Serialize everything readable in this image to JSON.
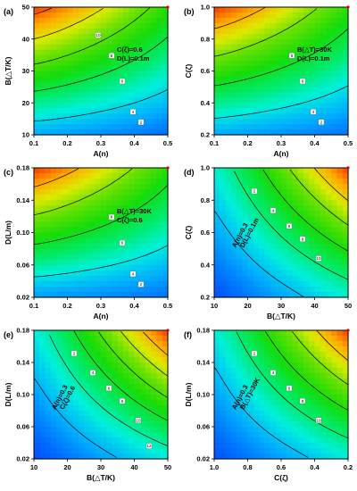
{
  "chart_data": [
    {
      "type": "heatmap",
      "panel_label": "(a)",
      "xlabel": "A(n)",
      "ylabel": "B(△T/K)",
      "xlim": [
        0.1,
        0.5
      ],
      "ylim": [
        10,
        50
      ],
      "xticks": [
        "0.1",
        "0.2",
        "0.3",
        "0.4",
        "0.5"
      ],
      "yticks": [
        "10",
        "20",
        "30",
        "40",
        "50"
      ],
      "annotations": [
        "C(ζ)=0.6",
        "D(L)=0.1m"
      ],
      "contour_labels": [
        "10",
        "8",
        "6",
        "4",
        "2"
      ],
      "field": {
        "hot_corner": "top-left",
        "z_corners": {
          "bl": 1.3,
          "br": 0.6,
          "tl": 10.6,
          "tr": 5.2
        }
      }
    },
    {
      "type": "heatmap",
      "panel_label": "(b)",
      "xlabel": "A(n)",
      "ylabel": "C(ζ)",
      "xlim": [
        0.1,
        0.5
      ],
      "ylim": [
        0.2,
        1.0
      ],
      "xticks": [
        "0.1",
        "0.2",
        "0.3",
        "0.4",
        "0.5"
      ],
      "yticks": [
        "0.2",
        "0.4",
        "0.6",
        "0.8",
        "1.0"
      ],
      "annotations": [
        "B(△T)=30K",
        "D(L)=0.1m"
      ],
      "contour_labels": [
        "8",
        "6",
        "4",
        "2"
      ],
      "field": {
        "hot_corner": "top-left",
        "z_corners": {
          "bl": 1.2,
          "br": 0.6,
          "tl": 9.6,
          "tr": 4.8
        }
      }
    },
    {
      "type": "heatmap",
      "panel_label": "(c)",
      "xlabel": "A(n)",
      "ylabel": "D(L/m)",
      "xlim": [
        0.1,
        0.5
      ],
      "ylim": [
        0.02,
        0.18
      ],
      "xticks": [
        "0.1",
        "0.2",
        "0.3",
        "0.4",
        "0.5"
      ],
      "yticks": [
        "0.02",
        "0.06",
        "0.10",
        "0.14",
        "0.18"
      ],
      "annotations": [
        "B(△T)=30K",
        "C(ζ)=0.6"
      ],
      "contour_labels": [
        "8",
        "6",
        "4",
        "2"
      ],
      "field": {
        "hot_corner": "top-left",
        "z_corners": {
          "bl": 1.0,
          "br": 0.6,
          "tl": 9.4,
          "tr": 4.6
        }
      }
    },
    {
      "type": "heatmap",
      "panel_label": "(d)",
      "xlabel": "B(△T/K)",
      "ylabel": "C(ζ)",
      "xlim": [
        10,
        50
      ],
      "ylim": [
        0.2,
        1.0
      ],
      "xticks": [
        "10",
        "20",
        "30",
        "40",
        "50"
      ],
      "yticks": [
        "0.2",
        "0.4",
        "0.6",
        "0.8",
        "1.0"
      ],
      "annotations": [
        "A(n)=0.3",
        "D(L)=0.1m"
      ],
      "contour_labels": [
        "10",
        "8",
        "6",
        "4",
        "2"
      ],
      "field": {
        "hot_corner": "top-right",
        "z_corners": {
          "bl": 0.3,
          "br": 3.0,
          "tl": 3.0,
          "tr": 12.8
        }
      }
    },
    {
      "type": "heatmap",
      "panel_label": "(e)",
      "xlabel": "B(△T/K)",
      "ylabel": "D(L/m)",
      "xlim": [
        10,
        50
      ],
      "ylim": [
        0.02,
        0.18
      ],
      "xticks": [
        "10",
        "20",
        "30",
        "40",
        "50"
      ],
      "yticks": [
        "0.02",
        "0.06",
        "0.10",
        "0.14",
        "0.18"
      ],
      "annotations": [
        "A(n)=0.3",
        "C(ζ)=0.6"
      ],
      "contour_labels": [
        "12",
        "10",
        "8",
        "6",
        "4",
        "2"
      ],
      "field": {
        "hot_corner": "top-right",
        "z_corners": {
          "bl": 0.3,
          "br": 3.2,
          "tl": 3.2,
          "tr": 14.5
        }
      }
    },
    {
      "type": "heatmap",
      "panel_label": "(f)",
      "xlabel": "C(ζ)",
      "ylabel": "D(L/m)",
      "xlim": [
        1.0,
        0.2
      ],
      "ylim": [
        0.02,
        0.18
      ],
      "xticks": [
        "1.0",
        "0.8",
        "0.6",
        "0.4",
        "0.2"
      ],
      "yticks": [
        "0.02",
        "0.06",
        "0.10",
        "0.14",
        "0.18"
      ],
      "annotations": [
        "A(n)=0.3",
        "B(△T)=30K"
      ],
      "contour_labels": [
        "10",
        "8",
        "6",
        "4",
        "2"
      ],
      "field": {
        "hot_corner": "top-right",
        "z_corners": {
          "bl": 0.3,
          "br": 2.8,
          "tl": 2.8,
          "tr": 12.6
        }
      }
    }
  ]
}
